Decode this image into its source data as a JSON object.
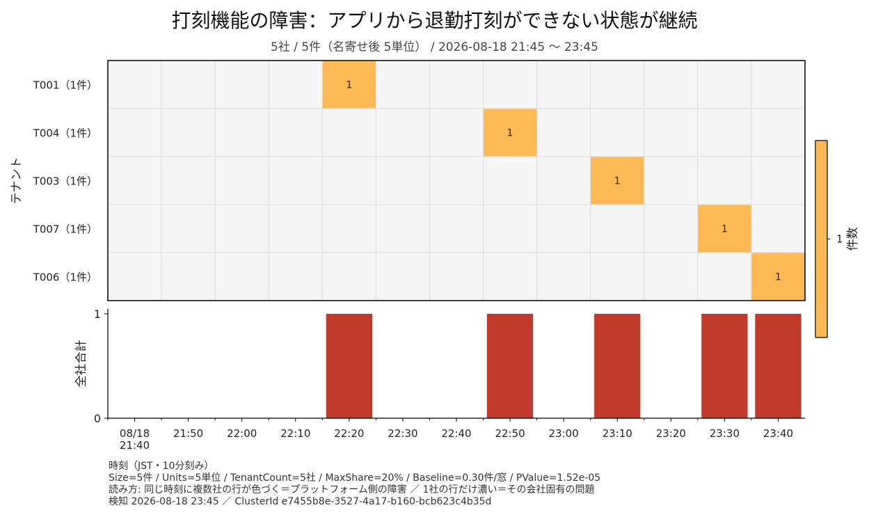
{
  "title": "打刻機能の障害：アプリから退勤打刻ができない状態が継続",
  "subtitle": "5社 / 5件（名寄せ後 5単位） / 2026-08-18 21:45 〜 23:45",
  "footer": [
    "時刻（JST・10分刻み）",
    "Size=5件 / Units=5単位 / TenantCount=5社 / MaxShare=20% / Baseline=0.30件/窓 / PValue=1.52e-05",
    "読み方: 同じ時刻に複数社の行が色づく＝プラットフォーム側の障害 ／ 1社の行だけ濃い＝その会社固有の問題",
    "検知 2026-08-18 23:45 ／ ClusterId e7455b8e-3527-4a17-b160-bcb623c4b35d"
  ],
  "colors": {
    "cell_empty": "#f5f5f5",
    "cell_value": "#feb954",
    "bar": "#c0392b",
    "grid": "#dddddd"
  },
  "chart_data": [
    {
      "type": "heatmap",
      "ylabel": "テナント",
      "x": [
        "08/18 21:40",
        "21:50",
        "22:00",
        "22:10",
        "22:20",
        "22:30",
        "22:40",
        "22:50",
        "23:00",
        "23:10",
        "23:20",
        "23:30",
        "23:40"
      ],
      "rows": [
        "T001（1件）",
        "T004（1件）",
        "T003（1件）",
        "T007（1件）",
        "T006（1件）"
      ],
      "values": [
        [
          0,
          0,
          0,
          0,
          1,
          0,
          0,
          0,
          0,
          0,
          0,
          0,
          0
        ],
        [
          0,
          0,
          0,
          0,
          0,
          0,
          0,
          1,
          0,
          0,
          0,
          0,
          0
        ],
        [
          0,
          0,
          0,
          0,
          0,
          0,
          0,
          0,
          0,
          1,
          0,
          0,
          0
        ],
        [
          0,
          0,
          0,
          0,
          0,
          0,
          0,
          0,
          0,
          0,
          0,
          1,
          0
        ],
        [
          0,
          0,
          0,
          0,
          0,
          0,
          0,
          0,
          0,
          0,
          0,
          0,
          1
        ]
      ],
      "colorbar": {
        "label": "件数",
        "ticks": [
          1
        ]
      }
    },
    {
      "type": "bar",
      "ylabel": "全社合計",
      "categories": [
        "08/18 21:40",
        "21:50",
        "22:00",
        "22:10",
        "22:20",
        "22:30",
        "22:40",
        "22:50",
        "23:00",
        "23:10",
        "23:20",
        "23:30",
        "23:40"
      ],
      "values": [
        0,
        0,
        0,
        0,
        1,
        0,
        0,
        1,
        0,
        1,
        0,
        1,
        1
      ],
      "ylim": [
        0,
        1
      ],
      "yticks": [
        0,
        1
      ]
    }
  ]
}
